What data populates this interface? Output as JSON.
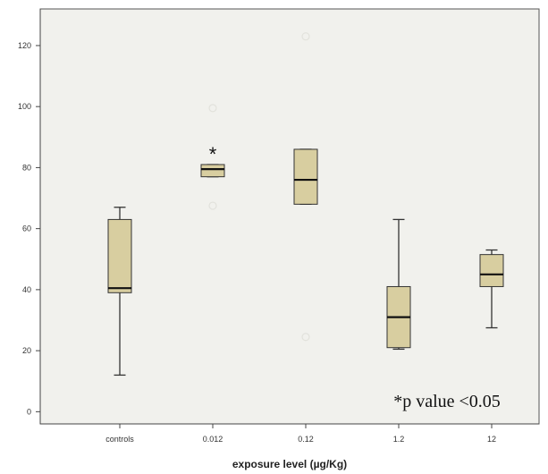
{
  "chart_data": {
    "type": "box",
    "xlabel": "exposure level (µg/Kg)",
    "ylabel": "",
    "ylim": [
      -4,
      132
    ],
    "yticks": [
      0,
      20,
      40,
      60,
      80,
      100,
      120
    ],
    "grid": false,
    "categories": [
      "controls",
      "0.012",
      "0.12",
      "1.2",
      "12"
    ],
    "boxes": [
      {
        "category": "controls",
        "whisker_low": 12,
        "q1": 39,
        "median": 40.5,
        "q3": 63,
        "whisker_high": 67,
        "outliers": [],
        "significance": ""
      },
      {
        "category": "0.012",
        "whisker_low": 77,
        "q1": 77,
        "median": 79.5,
        "q3": 81,
        "whisker_high": 81,
        "outliers": [
          67.5,
          99.5
        ],
        "significance": "*"
      },
      {
        "category": "0.12",
        "whisker_low": 68,
        "q1": 68,
        "median": 76,
        "q3": 86,
        "whisker_high": 86,
        "outliers": [
          24.5,
          123
        ],
        "significance": ""
      },
      {
        "category": "1.2",
        "whisker_low": 20.5,
        "q1": 21,
        "median": 31,
        "q3": 41,
        "whisker_high": 63,
        "outliers": [],
        "significance": ""
      },
      {
        "category": "12",
        "whisker_low": 27.5,
        "q1": 41,
        "median": 45,
        "q3": 51.5,
        "whisker_high": 53,
        "outliers": [],
        "significance": ""
      }
    ],
    "annotation": "*p value <0.05",
    "colors": {
      "plot_background": "#f1f1ed",
      "box_fill": "#d8cea0",
      "box_stroke": "#333333",
      "outlier": "#e2e2dc"
    }
  }
}
